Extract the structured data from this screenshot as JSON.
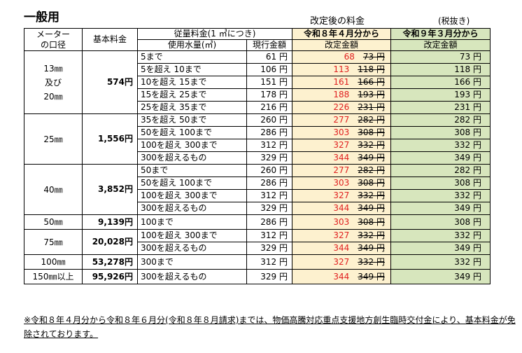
{
  "title": "一般用",
  "supertitle": "改定後の料金",
  "tax_note": "(税抜き)",
  "headers": {
    "meter": "メーター\nの口径",
    "base": "基本料金",
    "volume_rate": "従量料金(1 ㎥につき)",
    "usage": "使用水量(㎥)",
    "current": "現行金額",
    "r8": "令和８年４月分から",
    "r8_sub": "改定金額",
    "r9": "令和９年３月分から",
    "r9_sub": "改定金額"
  },
  "groups": [
    {
      "meter": "13㎜\n及び\n20㎜",
      "base": "574円",
      "rows": [
        {
          "usage": "5まで",
          "current": "61 円",
          "new": "68",
          "old": "73 円",
          "r9": "73 円"
        },
        {
          "usage": "5を超え 10まで",
          "current": "106 円",
          "new": "113",
          "old": "118 円",
          "r9": "118 円"
        },
        {
          "usage": "10を超え 15まで",
          "current": "151 円",
          "new": "161",
          "old": "166 円",
          "r9": "166 円"
        },
        {
          "usage": "15を超え 25まで",
          "current": "178 円",
          "new": "188",
          "old": "193 円",
          "r9": "193 円"
        },
        {
          "usage": "25を超え 35まで",
          "current": "216 円",
          "new": "226",
          "old": "231 円",
          "r9": "231 円"
        }
      ]
    },
    {
      "meter": "25㎜",
      "base": "1,556円",
      "rows": [
        {
          "usage": "35を超え 50まで",
          "current": "260 円",
          "new": "277",
          "old": "282 円",
          "r9": "282 円"
        },
        {
          "usage": "50を超え 100まで",
          "current": "286 円",
          "new": "303",
          "old": "308 円",
          "r9": "308 円"
        },
        {
          "usage": "100を超え 300まで",
          "current": "312 円",
          "new": "327",
          "old": "332 円",
          "r9": "332 円"
        },
        {
          "usage": "300を超えるもの",
          "current": "329 円",
          "new": "344",
          "old": "349 円",
          "r9": "349 円"
        }
      ]
    },
    {
      "meter": "40㎜",
      "base": "3,852円",
      "rows": [
        {
          "usage": "50まで",
          "current": "260 円",
          "new": "277",
          "old": "282 円",
          "r9": "282 円"
        },
        {
          "usage": "50を超え 100まで",
          "current": "286 円",
          "new": "303",
          "old": "308 円",
          "r9": "308 円"
        },
        {
          "usage": "100を超え 300まで",
          "current": "312 円",
          "new": "327",
          "old": "332 円",
          "r9": "332 円"
        },
        {
          "usage": "300を超えるもの",
          "current": "329 円",
          "new": "344",
          "old": "349 円",
          "r9": "349 円"
        }
      ]
    },
    {
      "meter": "50㎜",
      "base": "9,139円",
      "rows": [
        {
          "usage": "100まで",
          "current": "286 円",
          "new": "303",
          "old": "308 円",
          "r9": "308 円"
        }
      ]
    },
    {
      "meter": "75㎜",
      "base": "20,028円",
      "rows": [
        {
          "usage": "100を超え 300まで",
          "current": "312 円",
          "new": "327",
          "old": "332 円",
          "r9": "332 円"
        },
        {
          "usage": "300を超えるもの",
          "current": "329 円",
          "new": "344",
          "old": "349 円",
          "r9": "349 円"
        }
      ]
    },
    {
      "meter": "100㎜",
      "base": "53,278円",
      "rows": [
        {
          "usage": "300まで",
          "current": "312 円",
          "new": "327",
          "old": "332 円",
          "r9": "332 円"
        }
      ]
    },
    {
      "meter": "150㎜以上",
      "base": "95,926円",
      "rows": [
        {
          "usage": "300を超えるもの",
          "current": "329 円",
          "new": "344",
          "old": "349 円",
          "r9": "349 円"
        }
      ]
    }
  ],
  "footnote": "※令和８年４月分から令和８年６月分(令和８年８月請求)までは、物価高騰対応重点支援地方創生臨時交付金により、基本料金が免除されております。",
  "colors": {
    "r8_bg": "#fdf1cf",
    "r9_bg": "#d7e6bd",
    "new_price": "#e02020"
  }
}
